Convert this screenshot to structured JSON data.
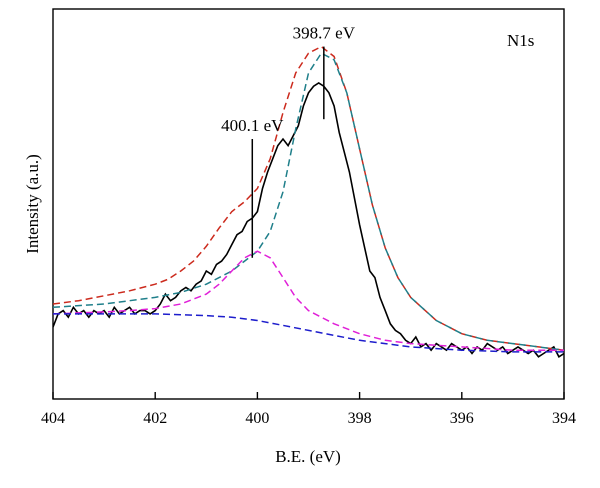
{
  "chart_data": {
    "type": "line",
    "title": "",
    "panel_label": "N1s",
    "xlabel": "B.E. (eV)",
    "ylabel": "Intensity (a.u.)",
    "xlim": [
      404,
      394
    ],
    "x_reversed": true,
    "ylim": [
      0,
      100
    ],
    "y_ticks_labeled": false,
    "x_ticks": [
      404,
      402,
      400,
      398,
      396,
      394
    ],
    "x_tick_labels": [
      "404",
      "402",
      "400",
      "398",
      "396",
      "394"
    ],
    "grid": false,
    "legend": "none",
    "annotations": [
      {
        "text": "398.7 eV",
        "x": 398.7,
        "y": 98,
        "line_y_from": 76,
        "line_y_to": 98
      },
      {
        "text": "400.1 eV",
        "x": 400.1,
        "y": 70,
        "line_y_from": 34,
        "line_y_to": 70
      }
    ],
    "series": [
      {
        "style": "solid",
        "color": "#000000",
        "x": [
          404.0,
          403.9,
          403.8,
          403.7,
          403.6,
          403.5,
          403.4,
          403.3,
          403.2,
          403.1,
          403.0,
          402.9,
          402.8,
          402.7,
          402.6,
          402.5,
          402.4,
          402.3,
          402.2,
          402.1,
          402.0,
          401.9,
          401.8,
          401.7,
          401.6,
          401.5,
          401.4,
          401.3,
          401.2,
          401.1,
          401.0,
          400.9,
          400.8,
          400.7,
          400.6,
          400.5,
          400.4,
          400.3,
          400.2,
          400.1,
          400.0,
          399.9,
          399.8,
          399.7,
          399.6,
          399.5,
          399.4,
          399.3,
          399.2,
          399.1,
          399.0,
          398.9,
          398.8,
          398.7,
          398.6,
          398.5,
          398.4,
          398.3,
          398.2,
          398.1,
          398.0,
          397.9,
          397.8,
          397.7,
          397.6,
          397.5,
          397.4,
          397.3,
          397.2,
          397.1,
          397.0,
          396.9,
          396.8,
          396.7,
          396.6,
          396.5,
          396.4,
          396.3,
          396.2,
          396.1,
          396.0,
          395.9,
          395.8,
          395.7,
          395.6,
          395.5,
          395.4,
          395.3,
          395.2,
          395.1,
          395.0,
          394.9,
          394.8,
          394.7,
          394.6,
          394.5,
          394.4,
          394.3,
          394.2,
          394.1,
          394.0
        ],
        "y": [
          13,
          17,
          18,
          16,
          19,
          17,
          18,
          16,
          18,
          17,
          18,
          16,
          19,
          17,
          18,
          19,
          17,
          18,
          18,
          17,
          18,
          20,
          23,
          21,
          22,
          24,
          25,
          24,
          26,
          27,
          30,
          29,
          32,
          33,
          35,
          38,
          41,
          42,
          45,
          46,
          48,
          55,
          60,
          64,
          68,
          70,
          68,
          71,
          74,
          80,
          84,
          86,
          87,
          86,
          84,
          80,
          72,
          66,
          60,
          52,
          44,
          37,
          30,
          28,
          22,
          18,
          14,
          12,
          11,
          9,
          8,
          10,
          7,
          8,
          6,
          8,
          7,
          6,
          8,
          7,
          6,
          7,
          5,
          7,
          6,
          8,
          7,
          6,
          7,
          5,
          6,
          7,
          6,
          5,
          6,
          4,
          5,
          6,
          7,
          4,
          5
        ]
      },
      {
        "style": "dashed",
        "color": "#cc2a1d",
        "x": [
          404.0,
          403.5,
          403.0,
          402.5,
          402.0,
          401.75,
          401.5,
          401.25,
          401.0,
          400.75,
          400.5,
          400.25,
          400.0,
          399.75,
          399.5,
          399.25,
          399.0,
          398.75,
          398.5,
          398.25,
          398.0,
          397.75,
          397.5,
          397.25,
          397.0,
          396.5,
          396.0,
          395.5,
          395.0,
          394.5,
          394.0
        ],
        "y": [
          20,
          21,
          22.5,
          24,
          26,
          27.5,
          30,
          33,
          37.5,
          43,
          48,
          51,
          55,
          64,
          78,
          90,
          96,
          98,
          95,
          84,
          67,
          50,
          37,
          28,
          22,
          15,
          11,
          9,
          8,
          7,
          6
        ]
      },
      {
        "style": "dashed",
        "color": "#1f7f8a",
        "x": [
          404.0,
          403.5,
          403.0,
          402.5,
          402.0,
          401.5,
          401.0,
          400.5,
          400.0,
          399.75,
          399.5,
          399.25,
          399.0,
          398.75,
          398.5,
          398.25,
          398.0,
          397.75,
          397.5,
          397.25,
          397.0,
          396.5,
          396.0,
          395.5,
          395.0,
          394.5,
          394.0
        ],
        "y": [
          19,
          19.5,
          20,
          21,
          22,
          23.5,
          26,
          30,
          36,
          42,
          54,
          73,
          90,
          96,
          94,
          84,
          67,
          50,
          37,
          28,
          22,
          15,
          11,
          9,
          8,
          7,
          6
        ]
      },
      {
        "style": "dashed",
        "color": "#e020d8",
        "x": [
          404.0,
          403.5,
          403.0,
          402.5,
          402.0,
          401.5,
          401.0,
          400.75,
          400.5,
          400.25,
          400.0,
          399.75,
          399.5,
          399.25,
          399.0,
          398.5,
          398.0,
          397.5,
          397.0,
          396.0,
          395.0,
          394.0
        ],
        "y": [
          17,
          17.3,
          17.6,
          18,
          18.6,
          20,
          23,
          26,
          30,
          34,
          36,
          34,
          28,
          22,
          18,
          14,
          11,
          9,
          8,
          7,
          6,
          6
        ]
      },
      {
        "style": "dashed",
        "color": "#1d1dcc",
        "x": [
          404.0,
          403.0,
          402.0,
          401.0,
          400.5,
          400.0,
          399.5,
          399.0,
          398.5,
          398.0,
          397.5,
          397.0,
          396.0,
          395.0,
          394.0
        ],
        "y": [
          17,
          17,
          17,
          16.5,
          16,
          15,
          13.5,
          12,
          10.5,
          9,
          8,
          7,
          6,
          5.5,
          5.5
        ]
      }
    ]
  }
}
